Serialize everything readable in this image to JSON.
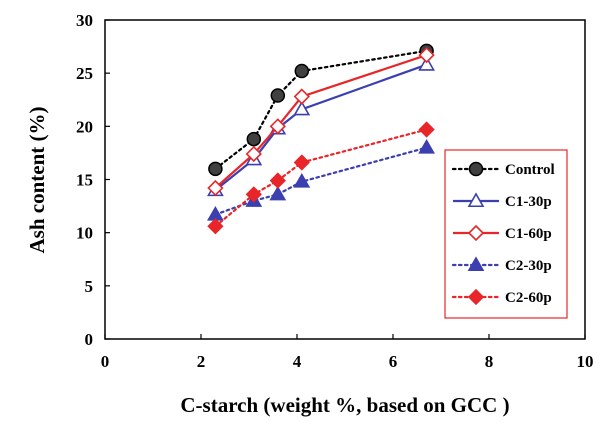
{
  "chart_data": {
    "type": "line",
    "xlabel": "C-starch (weight %, based on GCC )",
    "ylabel": "Ash content (%)",
    "xlim": [
      0,
      10
    ],
    "ylim": [
      0,
      30
    ],
    "xticks": [
      "0",
      "2",
      "4",
      "6",
      "8",
      "10"
    ],
    "yticks": [
      "0",
      "5",
      "10",
      "15",
      "20",
      "25",
      "30"
    ],
    "grid": false,
    "legend_position": "right",
    "series": [
      {
        "name": "Control",
        "x": [
          2.3,
          3.1,
          3.6,
          4.1,
          6.7
        ],
        "y": [
          16.0,
          18.8,
          22.9,
          25.2,
          27.1
        ],
        "color": "#000000",
        "line": "dotted",
        "marker": "circle"
      },
      {
        "name": "C1-30p",
        "x": [
          2.3,
          3.1,
          3.6,
          4.1,
          6.7
        ],
        "y": [
          14.0,
          16.9,
          19.8,
          21.6,
          25.8
        ],
        "color": "#3b3fb0",
        "line": "solid",
        "marker": "triangle-open"
      },
      {
        "name": "C1-60p",
        "x": [
          2.3,
          3.1,
          3.6,
          4.1,
          6.7
        ],
        "y": [
          14.2,
          17.4,
          20.0,
          22.8,
          26.7
        ],
        "color": "#e8262a",
        "line": "solid",
        "marker": "diamond-open"
      },
      {
        "name": "C2-30p",
        "x": [
          2.3,
          3.1,
          3.6,
          4.1,
          6.7
        ],
        "y": [
          11.7,
          13.0,
          13.6,
          14.8,
          18.0
        ],
        "color": "#3b3fb0",
        "line": "dotted",
        "marker": "triangle"
      },
      {
        "name": "C2-60p",
        "x": [
          2.3,
          3.1,
          3.6,
          4.1,
          6.7
        ],
        "y": [
          10.6,
          13.6,
          14.9,
          16.6,
          19.7
        ],
        "color": "#e8262a",
        "line": "dotted",
        "marker": "diamond"
      }
    ]
  }
}
